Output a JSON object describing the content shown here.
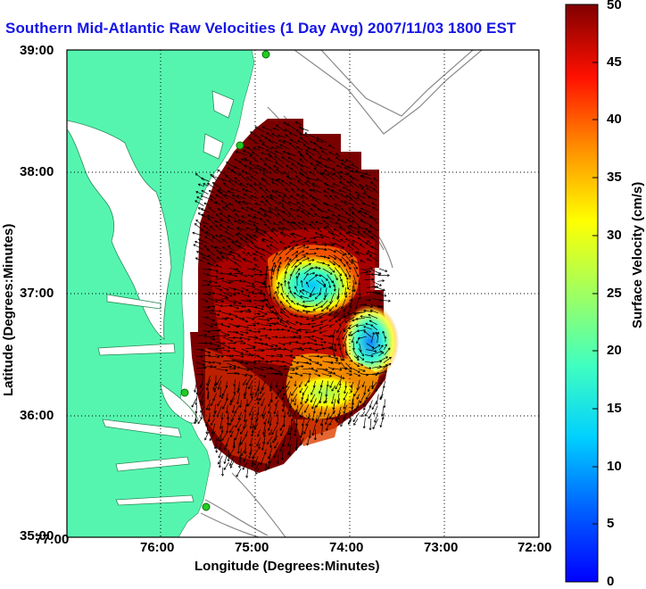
{
  "title": "Southern Mid-Atlantic Raw Velocities (1 Day Avg) 2007/11/03 1800 EST",
  "map": {
    "xlabel": "Longitude (Degrees:Minutes)",
    "ylabel": "Latitude (Degrees:Minutes)",
    "x_ticks": [
      "77:00",
      "76:00",
      "75:00",
      "74:00",
      "73:00",
      "72:00"
    ],
    "y_ticks": [
      "39:00",
      "38:00",
      "37:00",
      "36:00",
      "35:00"
    ],
    "lon_range_west": [
      77,
      72
    ],
    "lat_range": [
      35,
      39
    ],
    "grid": "dotted",
    "land_color": "#55f5b0",
    "water_color": "#ffffff",
    "bathymetry_color": "#888888",
    "station_color": "#22cc22"
  },
  "colorbar": {
    "label": "Surface Velocity (cm/s)",
    "ticks": [
      "0",
      "5",
      "10",
      "15",
      "20",
      "25",
      "30",
      "35",
      "40",
      "45",
      "50"
    ],
    "range": [
      0,
      50
    ],
    "colormap": "jet"
  },
  "chart_data": {
    "type": "heatmap",
    "title": "Southern Mid-Atlantic Raw Velocities (1 Day Avg) 2007/11/03 1800 EST",
    "xlabel": "Longitude (Degrees:Minutes)",
    "ylabel": "Latitude (Degrees:Minutes)",
    "colorbar_label": "Surface Velocity (cm/s)",
    "colorbar_range": [
      0,
      50
    ],
    "features": [
      {
        "lon_w": 74.5,
        "lat": 37.0,
        "speed": 8
      },
      {
        "lon_w": 73.7,
        "lat": 36.6,
        "speed": 5
      },
      {
        "lon_w": 74.3,
        "lat": 36.15,
        "speed": 25
      },
      {
        "lon_w": 75.0,
        "lat": 38.0,
        "speed": 50
      },
      {
        "lon_w": 75.3,
        "lat": 35.5,
        "speed": 45
      }
    ]
  }
}
